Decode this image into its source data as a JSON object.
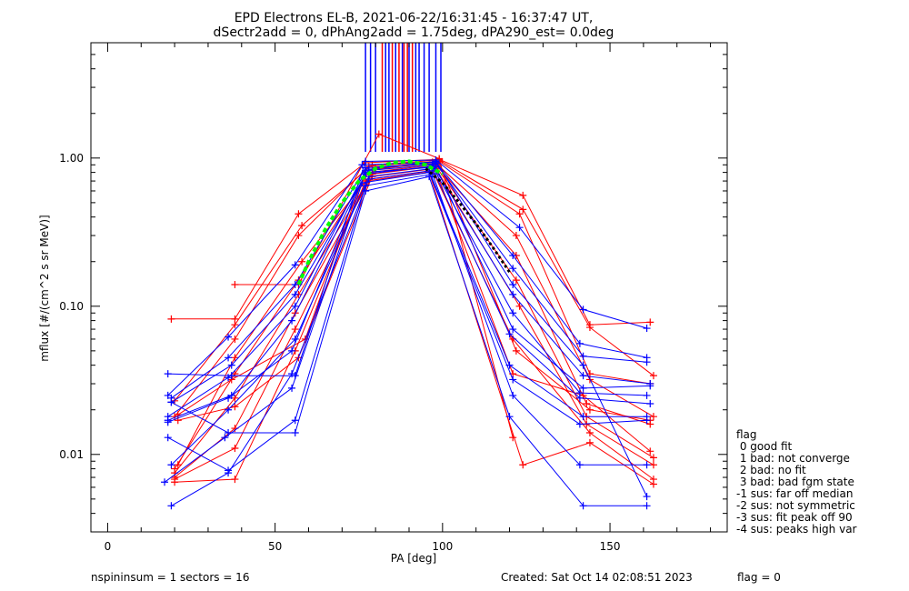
{
  "header": {
    "title_line1": "EPD Electrons EL-B, 2021-06-22/16:31:45 - 16:37:47 UT,",
    "title_line2": "dSectr2add = 0, dPhAng2add = 1.75deg, dPA290_est=   0.0deg"
  },
  "footer": {
    "left": "nspininsum =  1  sectors = 16",
    "created": "Created: Sat Oct 14 02:08:51 2023",
    "flag": "flag = 0"
  },
  "legend": {
    "title": "flag",
    "entries": [
      " 0 good fit",
      " 1 bad: not converge",
      " 2 bad: no fit",
      " 3 bad: bad fgm state",
      "-1 sus: far off median",
      "-2 sus: not symmetric",
      "-3 sus: fit peak off 90",
      "-4 sus: peaks high var"
    ]
  },
  "colors": {
    "red": "#ff0000",
    "blue": "#0000ff",
    "green": "#00ff00",
    "black": "#000000"
  },
  "chart_data": {
    "type": "line",
    "xlabel": "PA [deg]",
    "ylabel": "mflux [#/(cm^2 s sr MeV)]",
    "xlim": [
      -5,
      185
    ],
    "ylim": [
      0.003,
      6
    ],
    "yscale": "log",
    "xticks": [
      0,
      50,
      100,
      150
    ],
    "yticks": [
      0.01,
      0.1,
      1.0
    ],
    "ytick_labels": [
      "0.01",
      "0.10",
      "1.00"
    ],
    "pa_bins": [
      18,
      37,
      56,
      77,
      98,
      121,
      142,
      161
    ],
    "vertical_markers": {
      "ymin": 1.1,
      "red": [
        82,
        85,
        87,
        88.5,
        89.5,
        91
      ],
      "blue": [
        77,
        78.5,
        80,
        83,
        84,
        86,
        88,
        90,
        92,
        93,
        94.5,
        96,
        98,
        99.5
      ]
    },
    "series": [
      {
        "color": "red",
        "x": [
          19,
          38,
          57,
          77,
          99,
          124,
          144,
          162
        ],
        "y": [
          0.082,
          0.082,
          0.42,
          0.93,
          0.98,
          0.56,
          0.075,
          0.078
        ]
      },
      {
        "color": "red",
        "x": [
          20,
          38,
          58,
          79,
          99,
          124,
          144,
          163
        ],
        "y": [
          0.023,
          0.075,
          0.35,
          0.9,
          0.97,
          0.45,
          0.072,
          0.034
        ]
      },
      {
        "color": "red",
        "x": [
          20,
          38,
          57,
          78,
          99,
          123,
          144,
          162
        ],
        "y": [
          0.018,
          0.06,
          0.3,
          0.88,
          0.95,
          0.42,
          0.035,
          0.03
        ]
      },
      {
        "color": "red",
        "x": [
          21,
          38,
          58,
          80,
          98,
          122,
          144,
          163
        ],
        "y": [
          0.0085,
          0.045,
          0.2,
          0.85,
          0.92,
          0.3,
          0.032,
          0.018
        ]
      },
      {
        "color": "red",
        "x": [
          20,
          38,
          57,
          78,
          98,
          122,
          143,
          162
        ],
        "y": [
          0.008,
          0.035,
          0.15,
          0.8,
          0.9,
          0.22,
          0.022,
          0.016
        ]
      },
      {
        "color": "red",
        "x": [
          20,
          38,
          57,
          79,
          98,
          122,
          143,
          163
        ],
        "y": [
          0.0075,
          0.024,
          0.12,
          0.78,
          0.88,
          0.15,
          0.018,
          0.0095
        ]
      },
      {
        "color": "red",
        "x": [
          20,
          38,
          56,
          79,
          98,
          123,
          143,
          163
        ],
        "y": [
          0.007,
          0.015,
          0.09,
          0.75,
          0.85,
          0.1,
          0.016,
          0.0085
        ]
      },
      {
        "color": "red",
        "x": [
          20,
          38,
          56,
          78,
          97,
          121,
          144,
          163
        ],
        "y": [
          0.0068,
          0.011,
          0.07,
          0.72,
          0.82,
          0.06,
          0.014,
          0.0068
        ]
      },
      {
        "color": "red",
        "x": [
          20,
          38,
          56,
          77,
          96,
          124,
          144,
          163
        ],
        "y": [
          0.0065,
          0.0068,
          0.05,
          0.7,
          0.8,
          0.0085,
          0.012,
          0.0063
        ]
      },
      {
        "color": "red",
        "x": [
          38,
          57,
          81,
          99,
          121
        ],
        "y": [
          0.14,
          0.14,
          1.45,
          0.99,
          0.013
        ]
      },
      {
        "color": "red",
        "x": [
          21,
          38,
          57,
          80,
          99,
          122,
          144,
          162
        ],
        "y": [
          0.017,
          0.021,
          0.045,
          0.86,
          0.93,
          0.05,
          0.02,
          0.017
        ]
      },
      {
        "color": "red",
        "x": [
          21,
          37,
          59,
          77,
          97,
          121,
          142,
          162
        ],
        "y": [
          0.0185,
          0.032,
          0.06,
          0.82,
          0.94,
          0.035,
          0.025,
          0.0105
        ]
      },
      {
        "color": "blue",
        "x": [
          18,
          37,
          56,
          77,
          98,
          123,
          142,
          161
        ],
        "y": [
          0.035,
          0.034,
          0.034,
          0.95,
          0.97,
          0.34,
          0.095,
          0.071
        ]
      },
      {
        "color": "blue",
        "x": [
          18,
          36,
          56,
          76,
          98,
          121,
          141,
          161
        ],
        "y": [
          0.025,
          0.062,
          0.19,
          0.9,
          0.94,
          0.22,
          0.056,
          0.045
        ]
      },
      {
        "color": "blue",
        "x": [
          19,
          36,
          56,
          77,
          98,
          121,
          142,
          161
        ],
        "y": [
          0.024,
          0.045,
          0.14,
          0.86,
          0.92,
          0.18,
          0.046,
          0.042
        ]
      },
      {
        "color": "blue",
        "x": [
          18,
          36,
          56,
          77,
          97,
          121,
          142,
          162
        ],
        "y": [
          0.018,
          0.033,
          0.1,
          0.82,
          0.9,
          0.12,
          0.034,
          0.03
        ]
      },
      {
        "color": "blue",
        "x": [
          18,
          37,
          55,
          77,
          97,
          121,
          141,
          161
        ],
        "y": [
          0.017,
          0.025,
          0.08,
          0.78,
          0.88,
          0.09,
          0.026,
          0.025
        ]
      },
      {
        "color": "blue",
        "x": [
          19,
          36,
          56,
          78,
          97,
          120,
          141,
          162
        ],
        "y": [
          0.0085,
          0.02,
          0.06,
          0.75,
          0.85,
          0.065,
          0.024,
          0.022
        ]
      },
      {
        "color": "blue",
        "x": [
          19,
          36,
          55,
          78,
          96,
          120,
          142,
          161
        ],
        "y": [
          0.0045,
          0.0075,
          0.035,
          0.72,
          0.82,
          0.04,
          0.018,
          0.018
        ]
      },
      {
        "color": "blue",
        "x": [
          17,
          35,
          55,
          76,
          96,
          121,
          141,
          161
        ],
        "y": [
          0.0065,
          0.013,
          0.028,
          0.68,
          0.8,
          0.032,
          0.016,
          0.017
        ]
      },
      {
        "color": "blue",
        "x": [
          18,
          36,
          56,
          77,
          97,
          121,
          141,
          161
        ],
        "y": [
          0.013,
          0.0078,
          0.017,
          0.65,
          0.78,
          0.025,
          0.0085,
          0.0085
        ]
      },
      {
        "color": "blue",
        "x": [
          19,
          36,
          56,
          77,
          96,
          120,
          142,
          161
        ],
        "y": [
          0.0225,
          0.014,
          0.014,
          0.6,
          0.75,
          0.018,
          0.0045,
          0.0045
        ]
      },
      {
        "color": "blue",
        "x": [
          18,
          36,
          55,
          77,
          98,
          121,
          142,
          162
        ],
        "y": [
          0.0165,
          0.024,
          0.05,
          0.8,
          0.87,
          0.07,
          0.028,
          0.029
        ]
      },
      {
        "color": "blue",
        "x": [
          19,
          37,
          56,
          78,
          98,
          121,
          142,
          161
        ],
        "y": [
          0.0225,
          0.04,
          0.12,
          0.84,
          0.95,
          0.14,
          0.04,
          0.0052
        ]
      }
    ],
    "fit_curve_green": {
      "x": [
        57,
        60,
        65,
        70,
        75,
        80,
        85,
        90,
        95,
        100
      ],
      "y": [
        0.14,
        0.2,
        0.33,
        0.5,
        0.7,
        0.85,
        0.93,
        0.95,
        0.9,
        0.78
      ]
    },
    "fit_curve_black": {
      "x": [
        95,
        100,
        105,
        110,
        115,
        120
      ],
      "y": [
        0.85,
        0.68,
        0.5,
        0.36,
        0.25,
        0.17
      ]
    }
  }
}
